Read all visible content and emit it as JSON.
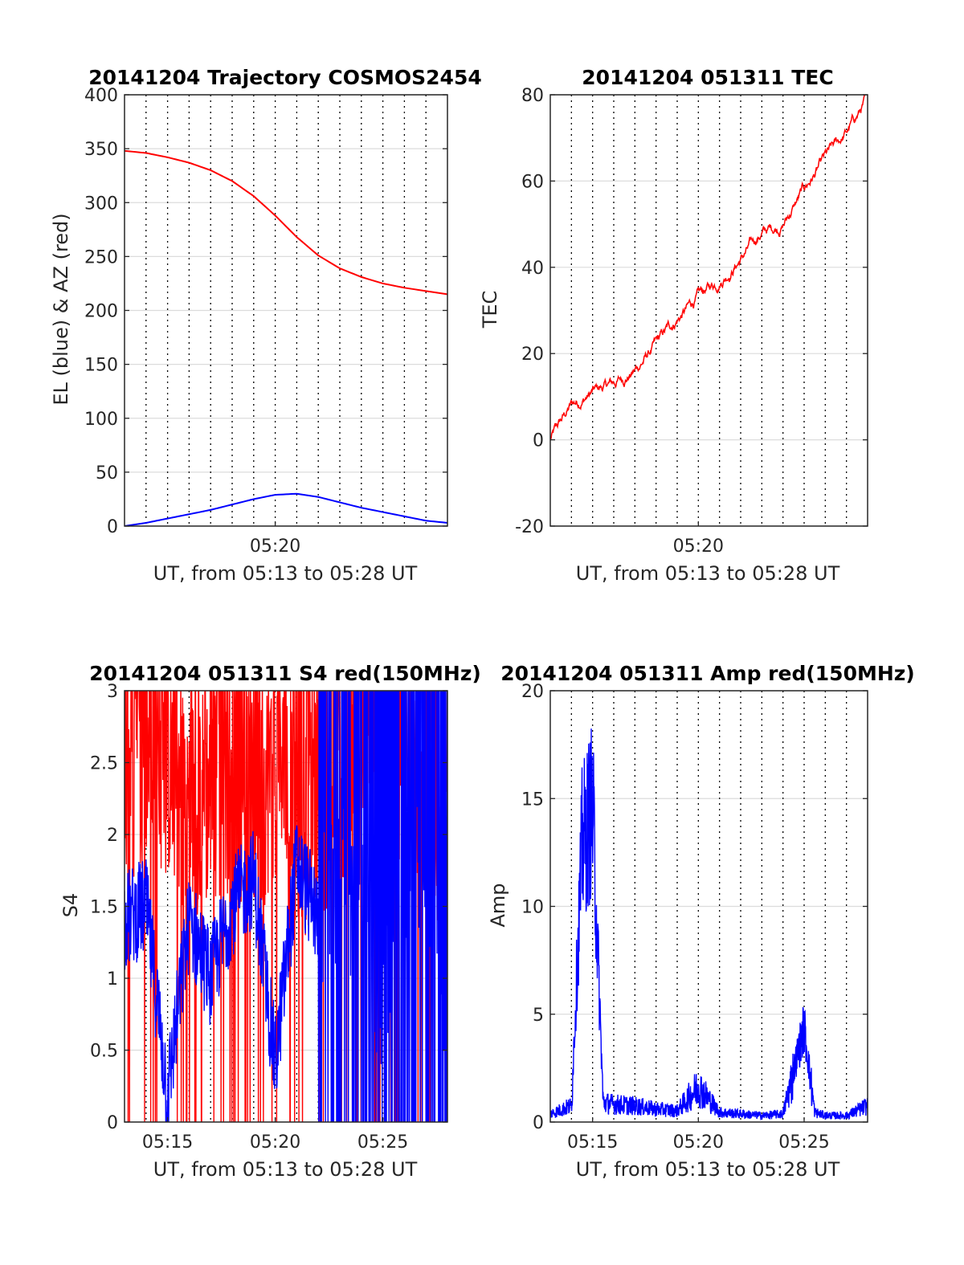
{
  "colors": {
    "az_red": "#ff0000",
    "el_blue": "#0000ff",
    "grid": "#dcdcdc",
    "axis": "#262626"
  },
  "chart_data": [
    {
      "id": "traj",
      "type": "line",
      "title": "20141204 Trajectory COSMOS2454",
      "xlabel": "UT, from 05:13 to 05:28 UT",
      "ylabel": "EL (blue) & AZ (red)",
      "xlim": [
        "05:13",
        "05:28"
      ],
      "ylim": [
        0,
        400
      ],
      "yticks": [
        0,
        50,
        100,
        150,
        200,
        250,
        300,
        350,
        400
      ],
      "xticks": [
        "05:20"
      ],
      "grid": true,
      "series": [
        {
          "color": "#ff0000",
          "x": [
            "05:13",
            "05:14",
            "05:15",
            "05:16",
            "05:17",
            "05:18",
            "05:19",
            "05:20",
            "05:21",
            "05:22",
            "05:23",
            "05:24",
            "05:25",
            "05:26",
            "05:27",
            "05:28"
          ],
          "y": [
            348,
            346,
            342,
            337,
            330,
            320,
            306,
            288,
            268,
            251,
            239,
            231,
            225,
            221,
            218,
            215
          ]
        },
        {
          "color": "#0000ff",
          "x": [
            "05:13",
            "05:14",
            "05:15",
            "05:16",
            "05:17",
            "05:18",
            "05:19",
            "05:20",
            "05:21",
            "05:22",
            "05:23",
            "05:24",
            "05:25",
            "05:26",
            "05:27",
            "05:28"
          ],
          "y": [
            0,
            3,
            7,
            11,
            15,
            20,
            25,
            29,
            30,
            27,
            22,
            17,
            13,
            9,
            5,
            3
          ]
        }
      ]
    },
    {
      "id": "tec",
      "type": "line",
      "title": "20141204 051311 TEC",
      "xlabel": "UT, from 05:13 to 05:28 UT",
      "ylabel": "TEC",
      "xlim": [
        "05:13",
        "05:28"
      ],
      "ylim": [
        -20,
        80
      ],
      "yticks": [
        -20,
        0,
        20,
        40,
        60,
        80
      ],
      "xticks": [
        "05:20"
      ],
      "grid": true,
      "series": [
        {
          "color": "#ff0000",
          "x": [
            "05:13",
            "05:14",
            "05:15",
            "05:16",
            "05:17",
            "05:18",
            "05:19",
            "05:20",
            "05:21",
            "05:22",
            "05:23",
            "05:24",
            "05:25",
            "05:26",
            "05:27",
            "05:28"
          ],
          "y": [
            0,
            8,
            11,
            13,
            16,
            22,
            28,
            33,
            37,
            42,
            48,
            50,
            58,
            65,
            71,
            79
          ]
        }
      ]
    },
    {
      "id": "s4",
      "type": "line",
      "title": "20141204 051311 S4 red(150MHz)",
      "xlabel": "UT, from 05:13 to 05:28 UT",
      "ylabel": "S4",
      "xlim": [
        "05:13",
        "05:28"
      ],
      "ylim": [
        0,
        3
      ],
      "yticks": [
        0,
        0.5,
        1,
        1.5,
        2,
        2.5,
        3
      ],
      "xticks": [
        "05:15",
        "05:20",
        "05:25"
      ],
      "grid": true,
      "series": [
        {
          "color": "#ff0000",
          "x": [
            "05:13",
            "05:14",
            "05:15",
            "05:16",
            "05:17",
            "05:18",
            "05:19",
            "05:20",
            "05:21",
            "05:22",
            "05:23",
            "05:24",
            "05:25",
            "05:26",
            "05:27",
            "05:28"
          ],
          "y": [
            2.4,
            2.6,
            2.5,
            2.2,
            2.3,
            2.4,
            2.1,
            2.5,
            2.0,
            2.2,
            2.4,
            2.6,
            2.8,
            2.5,
            2.4,
            2.0
          ]
        },
        {
          "color": "#0000ff",
          "x": [
            "05:13",
            "05:14",
            "05:15",
            "05:16",
            "05:17",
            "05:18",
            "05:19",
            "05:20",
            "05:21",
            "05:22",
            "05:23",
            "05:24",
            "05:25",
            "05:26",
            "05:27",
            "05:28"
          ],
          "y": [
            1.4,
            1.5,
            0.2,
            1.4,
            1.0,
            1.5,
            1.7,
            0.4,
            1.8,
            1.4,
            1.6,
            1.5,
            0.8,
            1.7,
            2.0,
            0.7
          ]
        }
      ]
    },
    {
      "id": "amp",
      "type": "line",
      "title": "20141204 051311 Amp red(150MHz)",
      "xlabel": "UT, from 05:13 to 05:28 UT",
      "ylabel": "Amp",
      "xlim": [
        "05:13",
        "05:28"
      ],
      "ylim": [
        0,
        20
      ],
      "yticks": [
        0,
        5,
        10,
        15,
        20
      ],
      "xticks": [
        "05:15",
        "05:20",
        "05:25"
      ],
      "grid": true,
      "series": [
        {
          "color": "#0000ff",
          "x": [
            "05:13",
            "05:14",
            "05:14:30",
            "05:15",
            "05:15:30",
            "05:16",
            "05:17",
            "05:18",
            "05:19",
            "05:20",
            "05:21",
            "05:22",
            "05:23",
            "05:24",
            "05:25",
            "05:25:30",
            "05:26",
            "05:27",
            "05:28"
          ],
          "y": [
            0.5,
            1.0,
            16.5,
            18.8,
            1.2,
            1.1,
            1.0,
            0.8,
            0.7,
            2.2,
            0.6,
            0.5,
            0.4,
            0.5,
            5.7,
            0.6,
            0.4,
            0.4,
            1.0
          ]
        }
      ]
    }
  ]
}
